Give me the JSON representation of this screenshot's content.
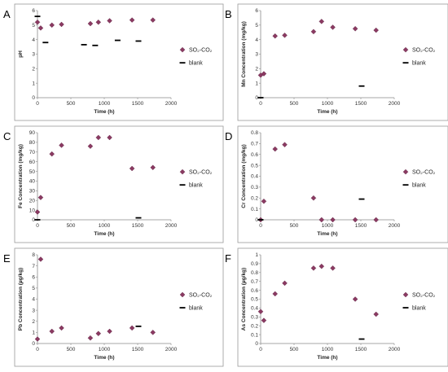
{
  "chart_data": [
    {
      "panel": "A",
      "type": "scatter",
      "xlabel": "Time (h)",
      "ylabel": "pH",
      "xlim": [
        0,
        2000
      ],
      "ylim": [
        0,
        6
      ],
      "xticks": [
        0,
        500,
        1000,
        1500,
        2000
      ],
      "yticks": [
        0,
        1,
        2,
        3,
        4,
        5,
        6
      ],
      "grid": false,
      "legend_position": "right",
      "series": [
        {
          "name": "SO₂-CO₂",
          "marker": "diamond",
          "color": "#8b3a62",
          "x": [
            0,
            48,
            216,
            360,
            792,
            912,
            1080,
            1416,
            1728
          ],
          "y": [
            5.2,
            4.8,
            5.0,
            5.05,
            5.1,
            5.2,
            5.3,
            5.35,
            5.35
          ]
        },
        {
          "name": "blank",
          "marker": "dash",
          "color": "#000000",
          "x": [
            0,
            120,
            696,
            864,
            1200,
            1512
          ],
          "y": [
            5.6,
            3.8,
            3.65,
            3.6,
            3.95,
            3.9
          ]
        }
      ]
    },
    {
      "panel": "B",
      "type": "scatter",
      "xlabel": "Time (h)",
      "ylabel": "Mn Concentration (mg/kg)",
      "xlim": [
        0,
        2000
      ],
      "ylim": [
        0,
        6
      ],
      "xticks": [
        0,
        500,
        1000,
        1500,
        2000
      ],
      "yticks": [
        0,
        1,
        2,
        3,
        4,
        5,
        6
      ],
      "grid": false,
      "legend_position": "right",
      "series": [
        {
          "name": "SO₂-CO₂",
          "marker": "diamond",
          "color": "#8b3a62",
          "x": [
            0,
            48,
            216,
            360,
            792,
            912,
            1080,
            1416,
            1728
          ],
          "y": [
            1.55,
            1.65,
            4.25,
            4.3,
            4.55,
            5.25,
            4.85,
            4.75,
            4.65
          ]
        },
        {
          "name": "blank",
          "marker": "dash",
          "color": "#000000",
          "x": [
            0,
            1512
          ],
          "y": [
            0,
            0.8
          ]
        }
      ]
    },
    {
      "panel": "C",
      "type": "scatter",
      "xlabel": "Time (h)",
      "ylabel": "Fe Concentration (mg/kg)",
      "xlim": [
        0,
        2000
      ],
      "ylim": [
        0,
        90
      ],
      "xticks": [
        0,
        500,
        1000,
        1500,
        2000
      ],
      "yticks": [
        0,
        10,
        20,
        30,
        40,
        50,
        60,
        70,
        80,
        90
      ],
      "grid": false,
      "legend_position": "right",
      "series": [
        {
          "name": "SO₂-CO₂",
          "marker": "diamond",
          "color": "#8b3a62",
          "x": [
            0,
            48,
            216,
            360,
            792,
            912,
            1080,
            1416,
            1728
          ],
          "y": [
            8,
            23,
            68,
            77,
            76,
            85,
            85,
            53,
            54
          ]
        },
        {
          "name": "blank",
          "marker": "dash",
          "color": "#000000",
          "x": [
            0,
            1512
          ],
          "y": [
            0,
            2
          ]
        }
      ]
    },
    {
      "panel": "D",
      "type": "scatter",
      "xlabel": "Time (h)",
      "ylabel": "Cr Concentration (mg/kg)",
      "xlim": [
        0,
        2000
      ],
      "ylim": [
        0,
        0.8
      ],
      "xticks": [
        0,
        500,
        1000,
        1500,
        2000
      ],
      "yticks": [
        0,
        0.1,
        0.2,
        0.3,
        0.4,
        0.5,
        0.6,
        0.7,
        0.8
      ],
      "grid": false,
      "legend_position": "right",
      "series": [
        {
          "name": "SO₂-CO₂",
          "marker": "diamond",
          "color": "#8b3a62",
          "x": [
            0,
            48,
            216,
            360,
            792,
            912,
            1080,
            1416,
            1728
          ],
          "y": [
            0,
            0.17,
            0.65,
            0.69,
            0.2,
            0,
            0,
            0,
            0
          ]
        },
        {
          "name": "blank",
          "marker": "dash",
          "color": "#000000",
          "x": [
            0,
            1512
          ],
          "y": [
            0,
            0.19
          ]
        }
      ]
    },
    {
      "panel": "E",
      "type": "scatter",
      "xlabel": "Time (h)",
      "ylabel": "Pb Concentration (µg/kg)",
      "xlim": [
        0,
        2000
      ],
      "ylim": [
        0,
        8
      ],
      "xticks": [
        0,
        500,
        1000,
        1500,
        2000
      ],
      "yticks": [
        0,
        1,
        2,
        3,
        4,
        5,
        6,
        7,
        8
      ],
      "grid": false,
      "legend_position": "right",
      "series": [
        {
          "name": "SO₂-CO₂",
          "marker": "diamond",
          "color": "#8b3a62",
          "x": [
            0,
            48,
            216,
            360,
            792,
            912,
            1080,
            1416,
            1728
          ],
          "y": [
            0.4,
            7.6,
            1.1,
            1.4,
            0.5,
            0.9,
            1.1,
            1.4,
            1.0
          ]
        },
        {
          "name": "blank",
          "marker": "dash",
          "color": "#000000",
          "x": [
            1512
          ],
          "y": [
            1.55
          ]
        }
      ]
    },
    {
      "panel": "F",
      "type": "scatter",
      "xlabel": "Time (h)",
      "ylabel": "As Concentration (µg/kg)",
      "xlim": [
        0,
        2000
      ],
      "ylim": [
        0,
        1
      ],
      "xticks": [
        0,
        500,
        1000,
        1500,
        2000
      ],
      "yticks": [
        0,
        0.1,
        0.2,
        0.3,
        0.4,
        0.5,
        0.6,
        0.7,
        0.8,
        0.9,
        1
      ],
      "grid": false,
      "legend_position": "right",
      "series": [
        {
          "name": "SO₂-CO₂",
          "marker": "diamond",
          "color": "#8b3a62",
          "x": [
            0,
            48,
            216,
            360,
            792,
            912,
            1080,
            1416,
            1728
          ],
          "y": [
            0.36,
            0.26,
            0.56,
            0.68,
            0.85,
            0.87,
            0.85,
            0.5,
            0.33
          ]
        },
        {
          "name": "blank",
          "marker": "dash",
          "color": "#000000",
          "x": [
            1512
          ],
          "y": [
            0.05
          ]
        }
      ]
    }
  ]
}
